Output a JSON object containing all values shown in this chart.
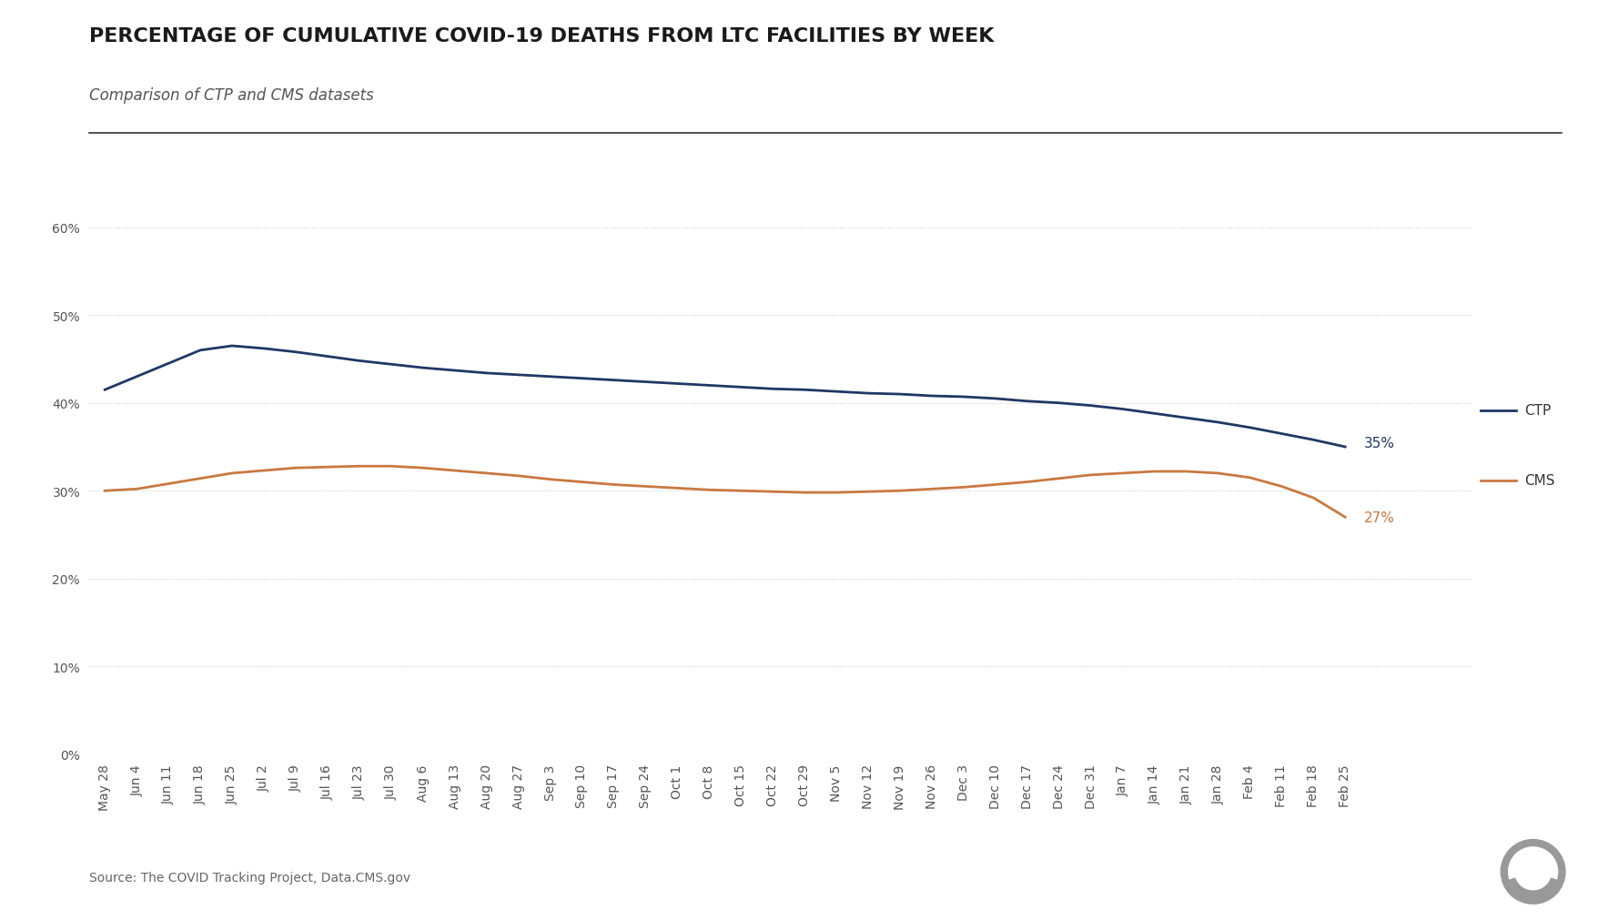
{
  "title": "PERCENTAGE OF CUMULATIVE COVID-19 DEATHS FROM LTC FACILITIES BY WEEK",
  "subtitle": "Comparison of CTP and CMS datasets",
  "source": "Source: The COVID Tracking Project, Data.CMS.gov",
  "x_labels": [
    "May 28",
    "Jun 4",
    "Jun 11",
    "Jun 18",
    "Jun 25",
    "Jul 2",
    "Jul 9",
    "Jul 16",
    "Jul 23",
    "Jul 30",
    "Aug 6",
    "Aug 13",
    "Aug 20",
    "Aug 27",
    "Sep 3",
    "Sep 10",
    "Sep 17",
    "Sep 24",
    "Oct 1",
    "Oct 8",
    "Oct 15",
    "Oct 22",
    "Oct 29",
    "Nov 5",
    "Nov 12",
    "Nov 19",
    "Nov 26",
    "Dec 3",
    "Dec 10",
    "Dec 17",
    "Dec 24",
    "Dec 31",
    "Jan 7",
    "Jan 14",
    "Jan 21",
    "Jan 28",
    "Feb 4",
    "Feb 11",
    "Feb 18",
    "Feb 25"
  ],
  "ctp_values": [
    0.415,
    0.43,
    0.445,
    0.46,
    0.465,
    0.462,
    0.458,
    0.453,
    0.448,
    0.444,
    0.44,
    0.437,
    0.434,
    0.432,
    0.43,
    0.428,
    0.426,
    0.424,
    0.422,
    0.42,
    0.418,
    0.416,
    0.415,
    0.413,
    0.411,
    0.41,
    0.408,
    0.407,
    0.405,
    0.402,
    0.4,
    0.397,
    0.393,
    0.388,
    0.383,
    0.378,
    0.372,
    0.365,
    0.358,
    0.35
  ],
  "cms_values": [
    0.3,
    0.302,
    0.308,
    0.314,
    0.32,
    0.323,
    0.326,
    0.327,
    0.328,
    0.328,
    0.326,
    0.323,
    0.32,
    0.317,
    0.313,
    0.31,
    0.307,
    0.305,
    0.303,
    0.301,
    0.3,
    0.299,
    0.298,
    0.298,
    0.299,
    0.3,
    0.302,
    0.304,
    0.307,
    0.31,
    0.314,
    0.318,
    0.32,
    0.322,
    0.322,
    0.32,
    0.315,
    0.305,
    0.292,
    0.27
  ],
  "ctp_color": "#1f3864",
  "cms_color": "#c87941",
  "ctp_label": "CTP",
  "cms_label": "CMS",
  "ctp_end_label": "35%",
  "cms_end_label": "27%",
  "ylim": [
    0.0,
    0.65
  ],
  "yticks": [
    0.0,
    0.1,
    0.2,
    0.3,
    0.4,
    0.5,
    0.6
  ],
  "ytick_labels": [
    "0%",
    "10%",
    "20%",
    "30%",
    "40%",
    "50%",
    "60%"
  ],
  "background_color": "#ffffff",
  "title_fontsize": 16,
  "subtitle_fontsize": 12,
  "tick_fontsize": 10,
  "legend_fontsize": 11,
  "source_fontsize": 10
}
